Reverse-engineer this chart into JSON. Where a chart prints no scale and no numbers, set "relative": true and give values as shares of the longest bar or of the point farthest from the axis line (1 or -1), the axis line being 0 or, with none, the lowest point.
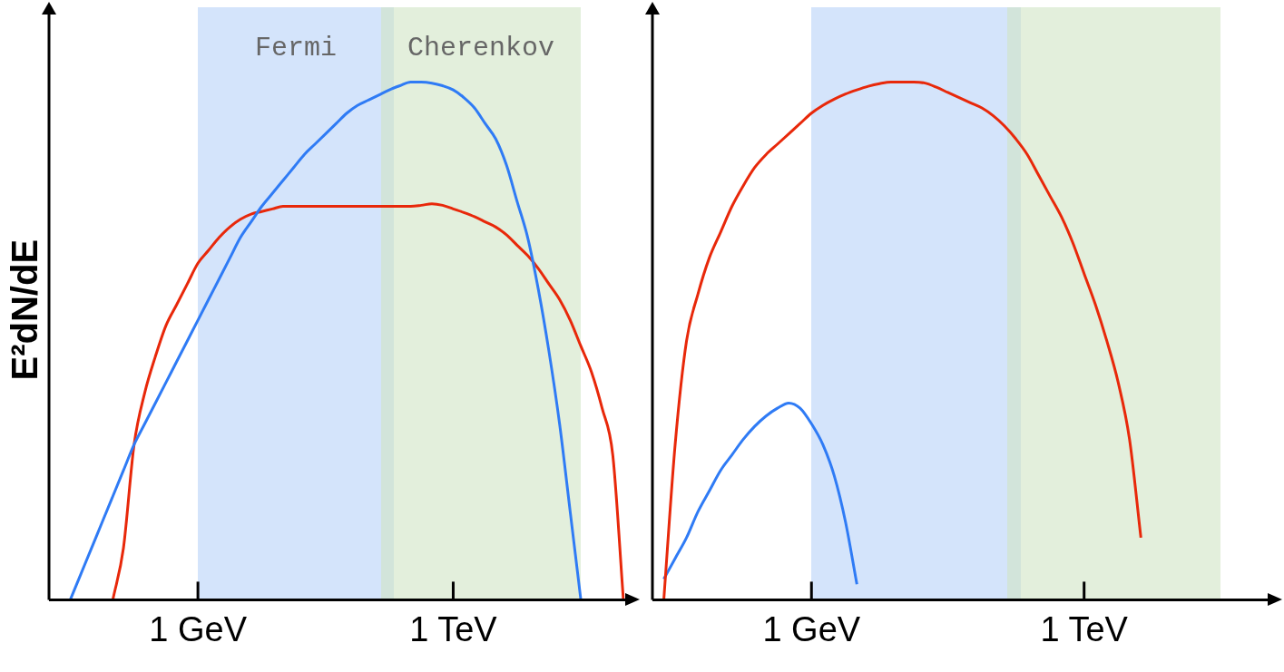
{
  "chart_data": [
    {
      "type": "line",
      "ylabel": "E²dN/dE",
      "relative": true,
      "tick_labels": "x",
      "grid": false,
      "legend": false,
      "marker": "none",
      "line_style": "solid",
      "annotations": [
        "Fermi",
        "Cherenkov"
      ],
      "categories": [
        null,
        null,
        null,
        null,
        null,
        null,
        null,
        null,
        null,
        null,
        null,
        null,
        null,
        null,
        "1 GeV",
        null,
        null,
        null,
        null,
        null,
        null,
        null,
        null,
        null,
        null,
        null,
        null,
        null,
        null,
        null,
        null,
        null,
        null,
        null,
        null,
        null,
        null,
        null,
        "1 TeV",
        null,
        null,
        null,
        null,
        null,
        null,
        null,
        null,
        null,
        null,
        null,
        null,
        null,
        null,
        null,
        null
      ],
      "series": [
        {
          "color": "#2f7bf5",
          "values": [
            null,
            null,
            0,
            0.05,
            0.1,
            0.15,
            0.2,
            0.25,
            0.3,
            0.34,
            0.38,
            0.42,
            0.46,
            0.5,
            0.54,
            0.58,
            0.62,
            0.66,
            0.7,
            0.73,
            0.76,
            0.785,
            0.81,
            0.835,
            0.86,
            0.88,
            0.9,
            0.92,
            0.94,
            0.955,
            0.965,
            0.975,
            0.985,
            0.993,
            1,
            1,
            0.998,
            0.993,
            0.985,
            0.97,
            0.95,
            0.92,
            0.89,
            0.84,
            0.77,
            0.7,
            0.6,
            0.48,
            0.34,
            0.17,
            0,
            null,
            null,
            null,
            null
          ]
        },
        {
          "color": "#e8280a",
          "values": [
            null,
            null,
            null,
            null,
            null,
            null,
            0,
            0.1,
            0.3,
            0.4,
            0.47,
            0.53,
            0.57,
            0.61,
            0.65,
            0.675,
            0.7,
            0.72,
            0.735,
            0.745,
            0.75,
            0.755,
            0.76,
            0.76,
            0.76,
            0.76,
            0.76,
            0.76,
            0.76,
            0.76,
            0.76,
            0.76,
            0.76,
            0.76,
            0.76,
            0.762,
            0.765,
            0.762,
            0.755,
            0.748,
            0.74,
            0.73,
            0.72,
            0.705,
            0.685,
            0.665,
            0.64,
            0.61,
            0.58,
            0.54,
            0.49,
            0.44,
            0.37,
            0.28,
            0
          ]
        }
      ]
    },
    {
      "type": "line",
      "relative": true,
      "tick_labels": "x",
      "grid": false,
      "legend": false,
      "marker": "none",
      "line_style": "solid",
      "categories": [
        null,
        null,
        null,
        null,
        null,
        null,
        null,
        null,
        null,
        null,
        null,
        null,
        null,
        null,
        "1 GeV",
        null,
        null,
        null,
        null,
        null,
        null,
        null,
        null,
        null,
        null,
        null,
        null,
        null,
        null,
        null,
        null,
        null,
        null,
        null,
        null,
        null,
        null,
        null,
        "1 TeV",
        null,
        null,
        null,
        null,
        null,
        null,
        null,
        null,
        null,
        null,
        null,
        null,
        null,
        null,
        null,
        null
      ],
      "series": [
        {
          "color": "#e8280a",
          "values": [
            null,
            0,
            0.3,
            0.5,
            0.59,
            0.66,
            0.71,
            0.76,
            0.8,
            0.835,
            0.86,
            0.88,
            0.9,
            0.92,
            0.94,
            0.955,
            0.967,
            0.977,
            0.985,
            0.992,
            0.997,
            1,
            1,
            1,
            0.998,
            0.99,
            0.98,
            0.97,
            0.96,
            0.95,
            0.935,
            0.915,
            0.89,
            0.86,
            0.82,
            0.78,
            0.74,
            0.69,
            0.63,
            0.57,
            0.5,
            0.42,
            0.31,
            0.12,
            null,
            null,
            null,
            null,
            null,
            null,
            null,
            null,
            null,
            null,
            null
          ]
        },
        {
          "color": "#2f7bf5",
          "values": [
            null,
            0.04,
            0.08,
            0.12,
            0.17,
            0.21,
            0.25,
            0.28,
            0.31,
            0.335,
            0.355,
            0.37,
            0.38,
            0.37,
            0.34,
            0.3,
            0.24,
            0.15,
            0.03,
            null,
            null,
            null,
            null,
            null,
            null,
            null,
            null,
            null,
            null,
            null,
            null,
            null,
            null,
            null,
            null,
            null,
            null,
            null,
            null,
            null,
            null,
            null,
            null,
            null,
            null,
            null,
            null,
            null,
            null,
            null,
            null,
            null,
            null,
            null,
            null
          ]
        }
      ]
    }
  ]
}
